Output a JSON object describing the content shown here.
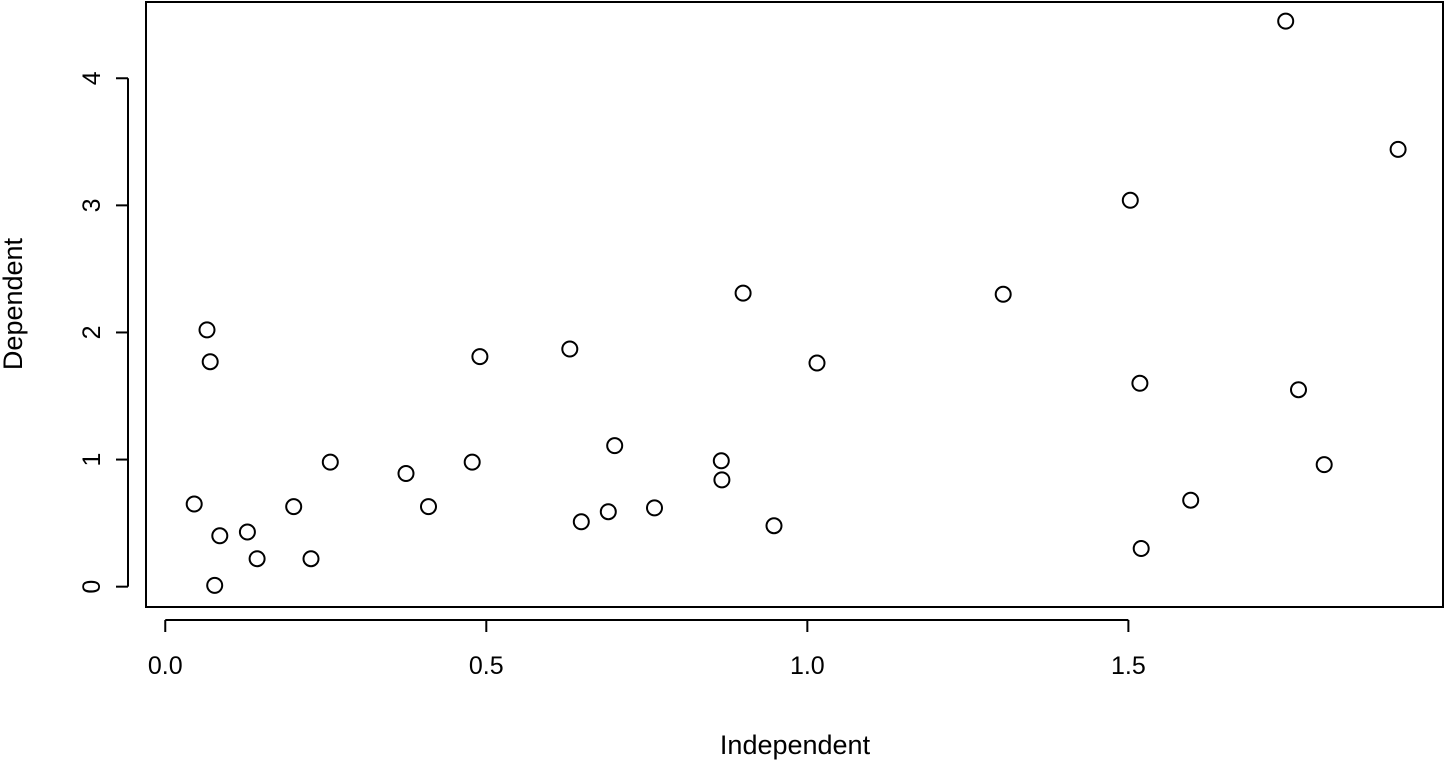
{
  "chart_data": {
    "type": "scatter",
    "xlabel": "Independent",
    "ylabel": "Dependent",
    "xlim": [
      -0.03,
      1.99
    ],
    "ylim": [
      -0.16,
      4.6
    ],
    "x_ticks": [
      {
        "value": 0.0,
        "label": "0.0"
      },
      {
        "value": 0.5,
        "label": "0.5"
      },
      {
        "value": 1.0,
        "label": "1.0"
      },
      {
        "value": 1.5,
        "label": "1.5"
      }
    ],
    "y_ticks": [
      {
        "value": 0,
        "label": "0"
      },
      {
        "value": 1,
        "label": "1"
      },
      {
        "value": 2,
        "label": "2"
      },
      {
        "value": 3,
        "label": "3"
      },
      {
        "value": 4,
        "label": "4"
      }
    ],
    "marker": "open-circle",
    "grid": false,
    "legend": "none",
    "colors": {
      "marker_stroke": "#000000",
      "marker_fill": "none",
      "axis": "#000000",
      "background": "#ffffff"
    },
    "points": [
      {
        "x": 0.045,
        "y": 0.65
      },
      {
        "x": 0.065,
        "y": 2.02
      },
      {
        "x": 0.07,
        "y": 1.77
      },
      {
        "x": 0.077,
        "y": 0.01
      },
      {
        "x": 0.085,
        "y": 0.4
      },
      {
        "x": 0.128,
        "y": 0.43
      },
      {
        "x": 0.143,
        "y": 0.22
      },
      {
        "x": 0.2,
        "y": 0.63
      },
      {
        "x": 0.227,
        "y": 0.22
      },
      {
        "x": 0.257,
        "y": 0.98
      },
      {
        "x": 0.375,
        "y": 0.89
      },
      {
        "x": 0.41,
        "y": 0.63
      },
      {
        "x": 0.478,
        "y": 0.98
      },
      {
        "x": 0.49,
        "y": 1.81
      },
      {
        "x": 0.63,
        "y": 1.87
      },
      {
        "x": 0.648,
        "y": 0.51
      },
      {
        "x": 0.69,
        "y": 0.59
      },
      {
        "x": 0.7,
        "y": 1.11
      },
      {
        "x": 0.762,
        "y": 0.62
      },
      {
        "x": 0.866,
        "y": 0.99
      },
      {
        "x": 0.867,
        "y": 0.84
      },
      {
        "x": 0.9,
        "y": 2.31
      },
      {
        "x": 0.948,
        "y": 0.48
      },
      {
        "x": 1.015,
        "y": 1.76
      },
      {
        "x": 1.305,
        "y": 2.3
      },
      {
        "x": 1.503,
        "y": 3.04
      },
      {
        "x": 1.518,
        "y": 1.6
      },
      {
        "x": 1.52,
        "y": 0.3
      },
      {
        "x": 1.597,
        "y": 0.68
      },
      {
        "x": 1.745,
        "y": 4.45
      },
      {
        "x": 1.765,
        "y": 1.55
      },
      {
        "x": 1.805,
        "y": 0.96
      },
      {
        "x": 1.92,
        "y": 3.44
      }
    ]
  }
}
